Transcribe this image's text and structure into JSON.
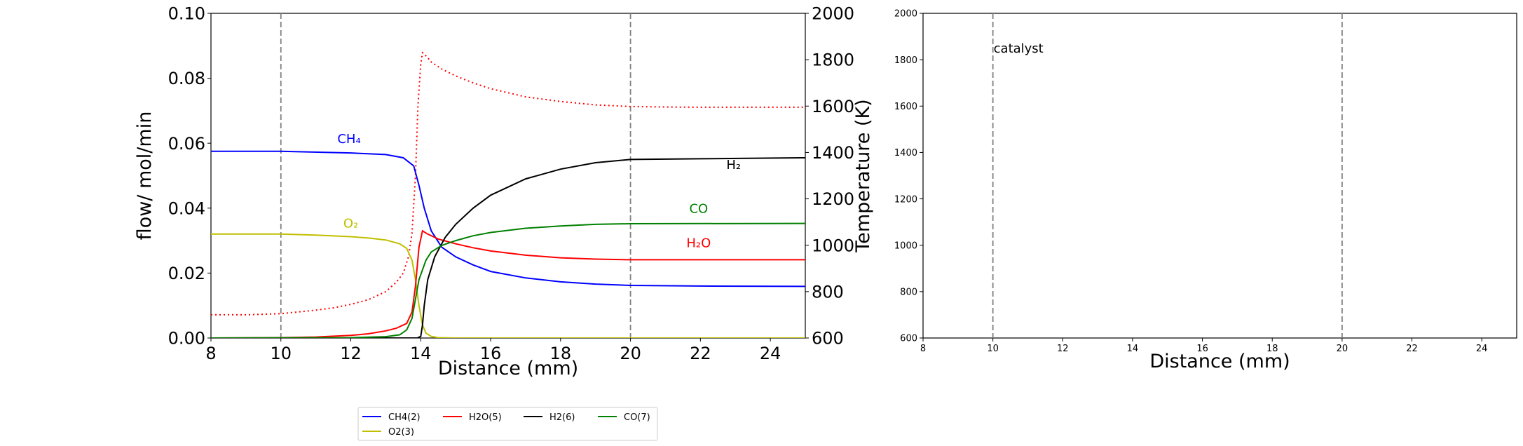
{
  "chart_data": [
    {
      "type": "line",
      "xlabel": "Distance (mm)",
      "ylabel": "flow/ mol/min",
      "y2label": "Temperature (K)",
      "xlim": [
        8,
        25
      ],
      "ylim": [
        0,
        0.1
      ],
      "y2lim": [
        600,
        2000
      ],
      "xticks": [
        "8",
        "10",
        "12",
        "14",
        "16",
        "18",
        "20",
        "22",
        "24"
      ],
      "yticks": [
        "0.00",
        "0.02",
        "0.04",
        "0.06",
        "0.08",
        "0.10"
      ],
      "y2ticks": [
        "600",
        "800",
        "1000",
        "1200",
        "1400",
        "1600",
        "1800",
        "2000"
      ],
      "vlines": [
        10,
        20
      ],
      "series": [
        {
          "name": "CH4(2)",
          "color": "#0000ff",
          "style": "solid",
          "x": [
            8,
            10,
            12,
            13,
            13.5,
            13.8,
            13.95,
            14.1,
            14.3,
            14.6,
            15,
            15.5,
            16,
            17,
            18,
            19,
            20,
            22,
            25
          ],
          "y": [
            0.0575,
            0.0575,
            0.057,
            0.0565,
            0.0555,
            0.053,
            0.047,
            0.04,
            0.033,
            0.028,
            0.025,
            0.0225,
            0.0205,
            0.0185,
            0.0173,
            0.0166,
            0.0162,
            0.016,
            0.0159
          ]
        },
        {
          "name": "O2(3)",
          "color": "#bfbf00",
          "style": "solid",
          "x": [
            8,
            10,
            11,
            12,
            12.5,
            13,
            13.4,
            13.6,
            13.75,
            13.85,
            13.95,
            14.05,
            14.15,
            14.3,
            14.5,
            15,
            25
          ],
          "y": [
            0.032,
            0.032,
            0.0317,
            0.0312,
            0.0308,
            0.0302,
            0.029,
            0.0276,
            0.024,
            0.018,
            0.01,
            0.004,
            0.0015,
            0.0005,
            0.0001,
            0,
            0
          ]
        },
        {
          "name": "H2O(5)",
          "color": "#ff0000",
          "style": "solid",
          "x": [
            8,
            10,
            11,
            12,
            12.5,
            13,
            13.3,
            13.6,
            13.75,
            13.85,
            13.95,
            14.05,
            14.2,
            14.5,
            15,
            15.5,
            16,
            17,
            18,
            19,
            20,
            25
          ],
          "y": [
            0,
            0.0001,
            0.0003,
            0.0008,
            0.0013,
            0.0022,
            0.003,
            0.0045,
            0.008,
            0.016,
            0.028,
            0.033,
            0.032,
            0.0305,
            0.029,
            0.0278,
            0.0268,
            0.0255,
            0.0247,
            0.0243,
            0.0241,
            0.0241
          ]
        },
        {
          "name": "H2(6)",
          "color": "#000000",
          "style": "solid",
          "x": [
            8,
            13.9,
            14.0,
            14.05,
            14.1,
            14.2,
            14.4,
            14.7,
            15,
            15.5,
            16,
            17,
            18,
            19,
            20,
            22,
            25
          ],
          "y": [
            0,
            0,
            0.0005,
            0.004,
            0.01,
            0.018,
            0.025,
            0.031,
            0.035,
            0.04,
            0.044,
            0.049,
            0.052,
            0.054,
            0.055,
            0.0552,
            0.0555
          ]
        },
        {
          "name": "CO(7)",
          "color": "#008000",
          "style": "solid",
          "x": [
            8,
            12,
            13,
            13.4,
            13.6,
            13.75,
            13.85,
            13.95,
            14.05,
            14.15,
            14.3,
            14.6,
            15,
            15.5,
            16,
            17,
            18,
            19,
            20,
            25
          ],
          "y": [
            0,
            0.0001,
            0.0004,
            0.001,
            0.0025,
            0.006,
            0.012,
            0.018,
            0.021,
            0.024,
            0.0265,
            0.0285,
            0.03,
            0.0315,
            0.0325,
            0.0338,
            0.0345,
            0.035,
            0.0352,
            0.0353
          ]
        }
      ],
      "temperature": {
        "color": "#ff0000",
        "style": "dotted",
        "x": [
          8,
          9,
          10,
          11,
          11.5,
          12,
          12.5,
          13,
          13.3,
          13.5,
          13.65,
          13.75,
          13.85,
          13.92,
          14.0,
          14.05,
          14.1,
          14.3,
          14.6,
          15,
          15.5,
          16,
          17,
          18,
          19,
          20,
          21,
          22,
          25
        ],
        "y": [
          700,
          700,
          705,
          720,
          730,
          745,
          765,
          800,
          840,
          880,
          950,
          1050,
          1300,
          1600,
          1780,
          1830,
          1825,
          1790,
          1760,
          1730,
          1700,
          1675,
          1640,
          1620,
          1605,
          1598,
          1596,
          1595,
          1595
        ]
      },
      "annotations": [
        {
          "text": "CH₄",
          "color": "#0000ff",
          "x": 11.95,
          "y": 0.06
        },
        {
          "text": "O₂",
          "color": "#bfbf00",
          "x": 12.0,
          "y": 0.034
        },
        {
          "text": "H₂",
          "color": "#000000",
          "x": 22.95,
          "y": 0.052
        },
        {
          "text": "CO",
          "color": "#008000",
          "x": 21.95,
          "y": 0.0385
        },
        {
          "text": "H₂O",
          "color": "#ff0000",
          "x": 21.95,
          "y": 0.028
        }
      ],
      "legend": {
        "placement": "below",
        "ncol": 4,
        "entries": [
          "CH4(2)",
          "H2O(5)",
          "H2(6)",
          "CO(7)",
          "O2(3)"
        ]
      }
    },
    {
      "type": "line",
      "xlabel": "Distance (mm)",
      "ylabel": "",
      "xlim": [
        8,
        25
      ],
      "ylim": [
        600,
        2000
      ],
      "xticks": [
        "8",
        "10",
        "12",
        "14",
        "16",
        "18",
        "20",
        "22",
        "24"
      ],
      "yticks": [
        "600",
        "800",
        "1000",
        "1200",
        "1400",
        "1600",
        "1800",
        "2000"
      ],
      "vlines": [
        10,
        20
      ],
      "annotations": [
        {
          "text": "catalyst",
          "x": 10.0,
          "y": 1830
        }
      ],
      "series": []
    }
  ]
}
